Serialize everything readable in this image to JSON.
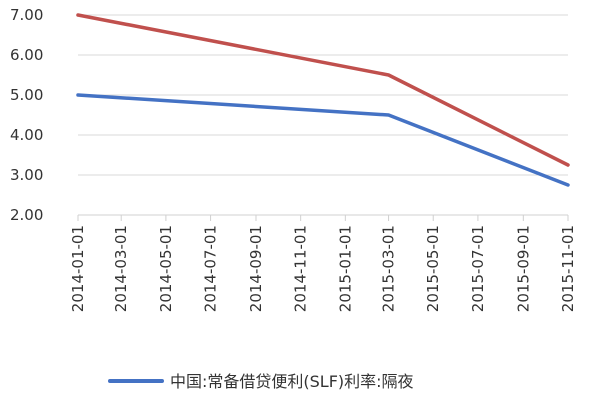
{
  "chart_data": {
    "type": "line",
    "title": "",
    "xlabel": "",
    "ylabel": "",
    "x": [
      "2014-01-01",
      "2015-03-01",
      "2015-11-01"
    ],
    "x_ticks": [
      "2014-01-01",
      "2014-03-01",
      "2014-05-01",
      "2014-07-01",
      "2014-09-01",
      "2014-11-01",
      "2015-01-01",
      "2015-03-01",
      "2015-05-01",
      "2015-07-01",
      "2015-09-01",
      "2015-11-01"
    ],
    "y_ticks": [
      "2.00",
      "3.00",
      "4.00",
      "5.00",
      "6.00",
      "7.00"
    ],
    "ylim": [
      2.0,
      7.0
    ],
    "grid": true,
    "legend_position": "bottom",
    "series": [
      {
        "name": "中国:常备借贷便利(SLF)利率:隔夜",
        "values": [
          5.0,
          4.5,
          2.75
        ],
        "color": "#4472c4",
        "in_legend": true
      },
      {
        "values": [
          7.0,
          5.5,
          3.25
        ],
        "color": "#c0504d",
        "in_legend": false
      }
    ]
  }
}
